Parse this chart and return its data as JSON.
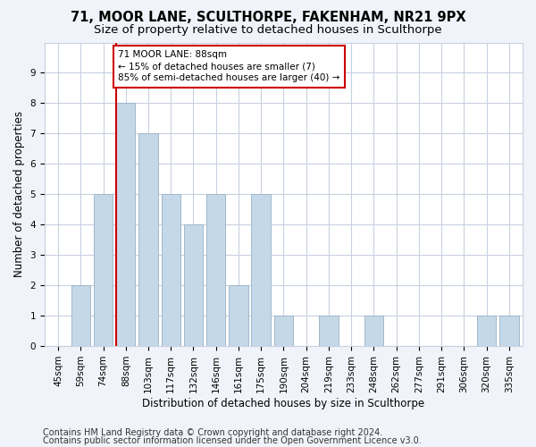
{
  "title_line1": "71, MOOR LANE, SCULTHORPE, FAKENHAM, NR21 9PX",
  "title_line2": "Size of property relative to detached houses in Sculthorpe",
  "xlabel": "Distribution of detached houses by size in Sculthorpe",
  "ylabel": "Number of detached properties",
  "categories": [
    "45sqm",
    "59sqm",
    "74sqm",
    "88sqm",
    "103sqm",
    "117sqm",
    "132sqm",
    "146sqm",
    "161sqm",
    "175sqm",
    "190sqm",
    "204sqm",
    "219sqm",
    "233sqm",
    "248sqm",
    "262sqm",
    "277sqm",
    "291sqm",
    "306sqm",
    "320sqm",
    "335sqm"
  ],
  "values": [
    0,
    2,
    5,
    8,
    7,
    5,
    4,
    5,
    2,
    5,
    1,
    0,
    1,
    0,
    1,
    0,
    0,
    0,
    0,
    1,
    1
  ],
  "bar_color": "#c5d8e8",
  "bar_edge_color": "#a0b8cc",
  "reference_line_x": 3,
  "reference_line_color": "#cc0000",
  "annotation_text": "71 MOOR LANE: 88sqm\n← 15% of detached houses are smaller (7)\n85% of semi-detached houses are larger (40) →",
  "annotation_box_color": "#ffffff",
  "annotation_box_edge_color": "#cc0000",
  "ylim": [
    0,
    10
  ],
  "yticks": [
    0,
    1,
    2,
    3,
    4,
    5,
    6,
    7,
    8,
    9,
    10
  ],
  "footer_line1": "Contains HM Land Registry data © Crown copyright and database right 2024.",
  "footer_line2": "Contains public sector information licensed under the Open Government Licence v3.0.",
  "background_color": "#f0f4fa",
  "plot_background_color": "#ffffff",
  "grid_color": "#c8d0e0",
  "title_fontsize": 10.5,
  "subtitle_fontsize": 9.5,
  "axis_label_fontsize": 8.5,
  "tick_fontsize": 7.5,
  "footer_fontsize": 7,
  "annotation_fontsize": 7.5
}
